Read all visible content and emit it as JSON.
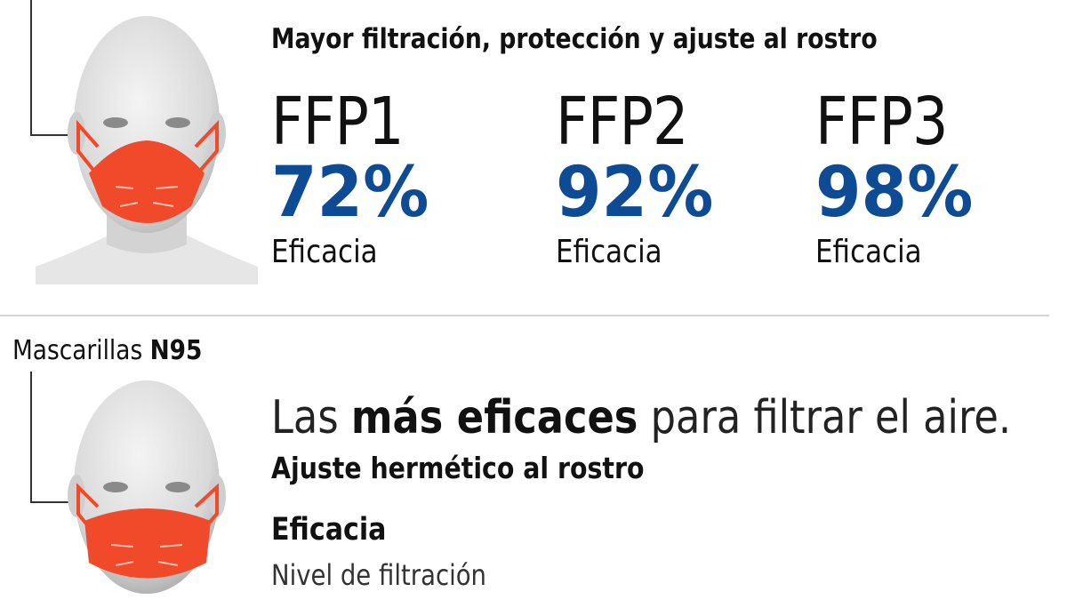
{
  "top": {
    "headline": "Mayor filtración, protección y ajuste al rostro",
    "types": [
      {
        "name": "FFP1",
        "percent": "72%",
        "label": "Eficacia"
      },
      {
        "name": "FFP2",
        "percent": "92%",
        "label": "Eficacia"
      },
      {
        "name": "FFP3",
        "percent": "98%",
        "label": "Eficacia"
      }
    ]
  },
  "n95": {
    "title_prefix": "Mascarillas ",
    "title_bold": "N95",
    "line_part1": "Las ",
    "line_bold": "más eficaces",
    "line_part2": " para filtrar el aire.",
    "subtitle": "Ajuste hermético al rostro",
    "efficacy_title": "Eficacia",
    "efficacy_sub": "Nivel de filtración"
  },
  "colors": {
    "accent_blue": "#0e4b95",
    "mask_orange": "#f04a2a"
  },
  "icons": [
    "mannequin-ffp-icon",
    "mannequin-n95-icon"
  ]
}
